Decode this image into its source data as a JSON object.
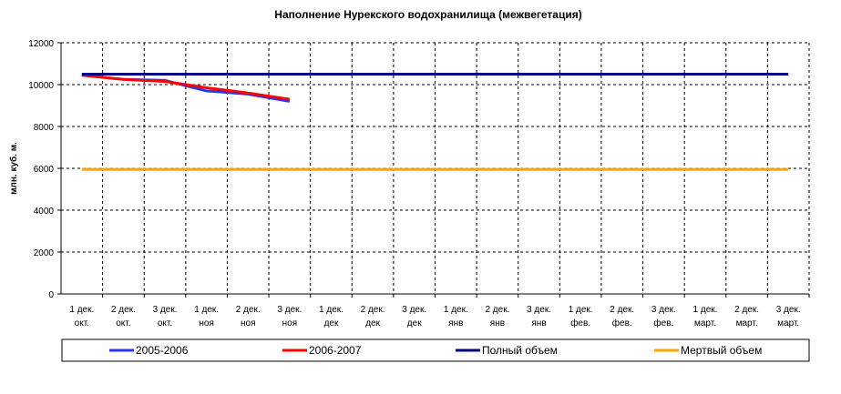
{
  "chart_data": {
    "type": "line",
    "title": "Наполнение Нурекского водохранилища (межвегетация)",
    "y_label": "млн. куб. м.",
    "categories": [
      [
        "1 дек.",
        "окт."
      ],
      [
        "2 дек.",
        "окт."
      ],
      [
        "3 дек.",
        "окт."
      ],
      [
        "1 дек.",
        "ноя"
      ],
      [
        "2 дек.",
        "ноя"
      ],
      [
        "3 дек.",
        "ноя"
      ],
      [
        "1 дек.",
        "дек"
      ],
      [
        "2 дек.",
        "дек"
      ],
      [
        "3 дек.",
        "дек"
      ],
      [
        "1 дек.",
        "янв"
      ],
      [
        "2 дек.",
        "янв"
      ],
      [
        "3 дек.",
        "янв"
      ],
      [
        "1 дек.",
        "фев."
      ],
      [
        "2 дек.",
        "фев."
      ],
      [
        "3 дек.",
        "фев."
      ],
      [
        "1 дек.",
        "март."
      ],
      [
        "2 дек.",
        "март."
      ],
      [
        "3 дек.",
        "март."
      ]
    ],
    "series": [
      {
        "name": "2005-2006",
        "color": "#2b35f0",
        "values": [
          10450,
          10250,
          10200,
          9700,
          9550,
          9200,
          null,
          null,
          null,
          null,
          null,
          null,
          null,
          null,
          null,
          null,
          null,
          null
        ]
      },
      {
        "name": "2006-2007",
        "color": "#ff0000",
        "values": [
          10450,
          10250,
          10150,
          9850,
          9600,
          9300,
          null,
          null,
          null,
          null,
          null,
          null,
          null,
          null,
          null,
          null,
          null,
          null
        ]
      },
      {
        "name": "Полный объем",
        "color": "#000080",
        "values": [
          10500,
          10500,
          10500,
          10500,
          10500,
          10500,
          10500,
          10500,
          10500,
          10500,
          10500,
          10500,
          10500,
          10500,
          10500,
          10500,
          10500,
          10500
        ]
      },
      {
        "name": "Мертвый объем",
        "color": "#ffa500",
        "values": [
          5950,
          5950,
          5950,
          5950,
          5950,
          5950,
          5950,
          5950,
          5950,
          5950,
          5950,
          5950,
          5950,
          5950,
          5950,
          5950,
          5950,
          5950
        ]
      }
    ],
    "ylim": [
      0,
      12000
    ],
    "yticks": [
      0,
      2000,
      4000,
      6000,
      8000,
      10000,
      12000
    ],
    "grid": true,
    "legend": "bottom"
  }
}
